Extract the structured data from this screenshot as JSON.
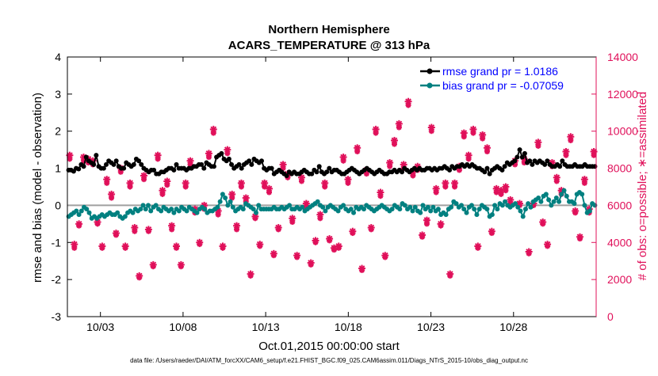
{
  "chart_data": {
    "type": "line",
    "title": "Northern Hemisphere",
    "subtitle": "ACARS_TEMPERATURE @ 313 hPa",
    "xlabel": "Oct.01,2015 00:00:00 start",
    "ylabel_left": "rmse and bias (model - observation)",
    "ylabel_right": "# of obs: o=possible; ∗=assimilated",
    "x_range_days": [
      0,
      32
    ],
    "ylim_left": [
      -3,
      4
    ],
    "ylim_right": [
      0,
      14000
    ],
    "x_ticks": [
      {
        "day": 2,
        "label": "10/03"
      },
      {
        "day": 7,
        "label": "10/08"
      },
      {
        "day": 12,
        "label": "10/13"
      },
      {
        "day": 17,
        "label": "10/18"
      },
      {
        "day": 22,
        "label": "10/23"
      },
      {
        "day": 27,
        "label": "10/28"
      }
    ],
    "y_ticks_left": [
      "-3",
      "-2",
      "-1",
      "0",
      "1",
      "2",
      "3",
      "4"
    ],
    "y_ticks_right": [
      "0",
      "2000",
      "4000",
      "6000",
      "8000",
      "10000",
      "12000",
      "14000"
    ],
    "legend": [
      {
        "label": "rmse grand pr = 1.0186",
        "series": "rmse"
      },
      {
        "label": "bias grand pr = -0.07059",
        "series": "bias"
      }
    ],
    "colors": {
      "rmse": "#000000",
      "bias": "#008080",
      "obs": "#e0105a",
      "zero_line": "#a0a0a0",
      "right_axis": "#e0105a",
      "legend_text": "#0000ff"
    },
    "series": [
      {
        "name": "rmse",
        "values": [
          0.95,
          0.95,
          0.92,
          1.0,
          0.98,
          1.1,
          1.05,
          1.3,
          1.2,
          1.15,
          1.1,
          1.35,
          1.05,
          1.0,
          1.0,
          1.1,
          1.2,
          1.15,
          1.1,
          1.2,
          1.05,
          1.0,
          1.0,
          1.15,
          1.1,
          1.05,
          1.1,
          1.25,
          1.2,
          1.1,
          1.0,
          0.95,
          0.9,
          0.95,
          0.95,
          0.85,
          0.85,
          0.9,
          0.9,
          0.95,
          1.0,
          1.0,
          0.95,
          1.1,
          1.0,
          1.0,
          1.0,
          0.95,
          1.0,
          1.0,
          1.05,
          1.05,
          1.1,
          1.1,
          1.0,
          1.15,
          1.1,
          1.05,
          1.05,
          1.3,
          1.35,
          1.4,
          1.25,
          1.2,
          1.25,
          1.1,
          1.0,
          1.05,
          1.1,
          1.0,
          1.1,
          1.15,
          1.2,
          1.1,
          1.25,
          1.2,
          1.15,
          1.2,
          1.0,
          0.95,
          1.0,
          1.0,
          0.85,
          0.9,
          0.95,
          0.9,
          0.85,
          0.8,
          0.9,
          0.85,
          0.9,
          0.85,
          0.85,
          0.9,
          0.95,
          0.9,
          0.85,
          0.85,
          0.95,
          0.9,
          1.05,
          0.9,
          0.85,
          0.9,
          1.0,
          0.9,
          0.95,
          0.95,
          0.9,
          0.85,
          0.85,
          0.9,
          0.95,
          1.0,
          0.95,
          0.9,
          0.85,
          0.9,
          0.95,
          1.0,
          0.95,
          0.9,
          0.85,
          0.9,
          0.95,
          0.9,
          0.85,
          0.85,
          0.9,
          0.9,
          0.95,
          0.9,
          0.95,
          0.9,
          1.0,
          0.95,
          0.9,
          0.95,
          1.0,
          0.95,
          1.0,
          0.95,
          0.95,
          1.0,
          1.0,
          0.95,
          1.0,
          0.95,
          1.0,
          1.0,
          1.05,
          1.0,
          0.95,
          1.05,
          1.0,
          1.05,
          1.05,
          1.1,
          1.05,
          1.1,
          1.05,
          1.1,
          1.05,
          1.0,
          1.0,
          0.95,
          0.9,
          1.0,
          0.85,
          0.95,
          1.0,
          1.05,
          1.0,
          0.95,
          1.05,
          1.15,
          1.1,
          1.15,
          1.2,
          1.3,
          1.5,
          1.3,
          1.4,
          1.15,
          1.2,
          1.1,
          1.2,
          1.15,
          1.2,
          1.15,
          1.1,
          1.2,
          1.1,
          1.05,
          1.05,
          1.1,
          1.05,
          1.2,
          1.1,
          1.05,
          1.05,
          1.05,
          1.1,
          1.05,
          1.05,
          1.05,
          1.1,
          1.05,
          1.05,
          1.05,
          1.05
        ]
      },
      {
        "name": "bias",
        "values": [
          -0.3,
          -0.25,
          -0.2,
          -0.15,
          -0.25,
          -0.15,
          -0.05,
          -0.1,
          -0.2,
          -0.35,
          -0.3,
          -0.35,
          -0.3,
          -0.25,
          -0.3,
          -0.25,
          -0.2,
          -0.25,
          -0.25,
          -0.2,
          -0.3,
          -0.35,
          -0.3,
          -0.2,
          -0.15,
          -0.2,
          -0.1,
          -0.15,
          -0.1,
          0.0,
          -0.1,
          0.0,
          -0.15,
          -0.05,
          0.0,
          -0.1,
          -0.15,
          -0.05,
          -0.1,
          -0.15,
          -0.1,
          -0.2,
          -0.1,
          -0.15,
          -0.05,
          -0.1,
          -0.15,
          -0.05,
          -0.1,
          -0.15,
          -0.2,
          -0.1,
          -0.05,
          -0.1,
          -0.2,
          -0.15,
          -0.15,
          -0.1,
          -0.05,
          0.1,
          0.3,
          0.2,
          0.0,
          0.1,
          -0.05,
          -0.15,
          -0.1,
          -0.05,
          -0.1,
          0.05,
          0.0,
          -0.05,
          -0.1,
          -0.2,
          0.0,
          -0.1,
          -0.1,
          -0.1,
          -0.1,
          -0.1,
          -0.05,
          -0.1,
          -0.1,
          -0.05,
          -0.1,
          -0.05,
          0.0,
          -0.1,
          -0.1,
          -0.05,
          -0.1,
          -0.05,
          -0.15,
          -0.1,
          -0.05,
          0.0,
          0.05,
          0.1,
          0.0,
          -0.05,
          -0.15,
          -0.05,
          0.0,
          -0.05,
          -0.1,
          -0.15,
          -0.05,
          0.0,
          -0.1,
          -0.15,
          -0.1,
          -0.2,
          -0.05,
          -0.1,
          -0.05,
          -0.1,
          0.0,
          -0.05,
          -0.1,
          -0.15,
          -0.1,
          -0.05,
          0.0,
          -0.05,
          -0.1,
          -0.15,
          -0.1,
          0.0,
          -0.05,
          -0.1,
          0.05,
          0.0,
          -0.1,
          -0.05,
          -0.15,
          -0.05,
          -0.15,
          -0.2,
          0.0,
          -0.1,
          -0.05,
          -0.15,
          -0.05,
          -0.15,
          -0.1,
          -0.25,
          -0.2,
          -0.25,
          -0.1,
          -0.05,
          0.1,
          0.05,
          -0.05,
          0.0,
          -0.1,
          -0.2,
          -0.05,
          0.0,
          -0.1,
          -0.25,
          -0.1,
          0.0,
          -0.05,
          -0.1,
          -0.3,
          -0.25,
          0.0,
          -0.1,
          0.05,
          0.0,
          0.1,
          0.0,
          -0.05,
          0.0,
          0.05,
          -0.05,
          -0.15,
          -0.3,
          -0.1,
          0.05,
          -0.05,
          0.1,
          0.15,
          0.2,
          0.1,
          0.25,
          0.3,
          0.15,
          0.0,
          0.1,
          0.2,
          0.1,
          0.3,
          0.4,
          0.25,
          0.1,
          0.1,
          0.05,
          0.3,
          0.35,
          0.3,
          0.0,
          -0.2,
          -0.15,
          0.05,
          0.0
        ]
      },
      {
        "name": "obs_possible",
        "values": [
          8700,
          3900,
          5000,
          8600,
          8500,
          8400,
          5100,
          3800,
          7400,
          6600,
          4500,
          8000,
          3800,
          7200,
          4800,
          2200,
          7600,
          4700,
          2800,
          8700,
          6800,
          7300,
          4900,
          3800,
          2800,
          7200,
          8400,
          5800,
          4000,
          6000,
          8800,
          10100,
          5700,
          3800,
          9000,
          6600,
          4900,
          7200,
          6400,
          2300,
          5400,
          3900,
          7200,
          6900,
          3400,
          4800,
          8200,
          7700,
          5300,
          3300,
          7500,
          6100,
          2900,
          4100,
          5500,
          7200,
          4200,
          3700,
          3800,
          8600,
          7400,
          4600,
          9100,
          2600,
          7900,
          4800,
          10100,
          6700,
          3300,
          8300,
          9500,
          10400,
          8200,
          11600,
          7800,
          8100,
          4400,
          5200,
          10200,
          6900,
          5000,
          7200,
          2300,
          7200,
          8100,
          9900,
          8700,
          10100,
          3800,
          9800,
          9100,
          4600,
          6900,
          6800,
          7000,
          6300,
          8400,
          6100,
          8500,
          3500,
          6100,
          9400,
          5100,
          3900,
          8300,
          7500,
          6800,
          8900,
          9700,
          5700,
          4300,
          7400,
          5800,
          8900
        ]
      },
      {
        "name": "obs_assimilated",
        "values": [
          8500,
          3700,
          4900,
          8400,
          8300,
          8200,
          5000,
          3700,
          7200,
          6400,
          4400,
          7800,
          3700,
          7000,
          4600,
          2100,
          7400,
          4600,
          2700,
          8500,
          6600,
          7100,
          4700,
          3700,
          2700,
          7000,
          8200,
          5600,
          3900,
          5800,
          8600,
          9900,
          5500,
          3700,
          8800,
          6400,
          4700,
          7000,
          6200,
          2200,
          5300,
          3800,
          7000,
          6700,
          3300,
          4700,
          8000,
          7500,
          5100,
          3200,
          7300,
          5900,
          2800,
          4000,
          5300,
          7000,
          4100,
          3600,
          3700,
          8400,
          7200,
          4500,
          8900,
          2500,
          7700,
          4700,
          9900,
          6500,
          3200,
          8100,
          9300,
          10200,
          8000,
          11400,
          7600,
          7900,
          4300,
          5000,
          10000,
          6700,
          4900,
          7000,
          2200,
          7000,
          7900,
          9700,
          8500,
          9900,
          3700,
          9600,
          8900,
          4500,
          6700,
          6600,
          6800,
          6100,
          8200,
          6000,
          8300,
          3400,
          6000,
          9200,
          5000,
          3800,
          8100,
          7300,
          6600,
          8700,
          9500,
          5600,
          4200,
          7200,
          5600,
          8700
        ]
      }
    ]
  },
  "footer": {
    "file_label": "data file: /Users/raeder/DAI/ATM_forcXX/CAM6_setup/f.e21.FHIST_BGC.f09_025.CAM6assim.011/Diags_NTrS_2015-10/obs_diag_output.nc"
  }
}
